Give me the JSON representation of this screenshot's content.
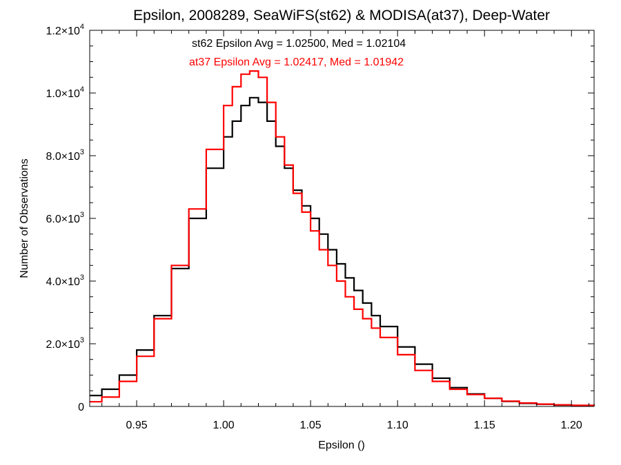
{
  "chart_data": {
    "type": "line",
    "step": true,
    "title": "Epsilon, 2008289, SeaWiFS(st62) & MODISA(at37), Deep-Water",
    "xlabel": "Epsilon ()",
    "ylabel": "Number of Observations",
    "xlim": [
      0.923,
      1.213
    ],
    "ylim": [
      0,
      12000
    ],
    "x_ticks": [
      0.95,
      1.0,
      1.05,
      1.1,
      1.15,
      1.2
    ],
    "x_tick_labels": [
      "0.95",
      "1.00",
      "1.05",
      "1.10",
      "1.15",
      "1.20"
    ],
    "y_ticks": [
      0,
      2000,
      4000,
      6000,
      8000,
      10000,
      12000
    ],
    "y_tick_labels": [
      {
        "mant": "0",
        "exp": ""
      },
      {
        "mant": "2.0×10",
        "exp": "3"
      },
      {
        "mant": "4.0×10",
        "exp": "3"
      },
      {
        "mant": "6.0×10",
        "exp": "3"
      },
      {
        "mant": "8.0×10",
        "exp": "3"
      },
      {
        "mant": "1.0×10",
        "exp": "4"
      },
      {
        "mant": "1.2×10",
        "exp": "4"
      }
    ],
    "grid": false,
    "legend_position": "top-center",
    "series": [
      {
        "name": "st62",
        "color": "#000000",
        "label": "st62 Epsilon Avg = 1.02500, Med = 1.02104",
        "x": [
          0.923,
          0.93,
          0.94,
          0.95,
          0.96,
          0.97,
          0.98,
          0.99,
          1.0,
          1.005,
          1.01,
          1.015,
          1.02,
          1.025,
          1.03,
          1.035,
          1.04,
          1.045,
          1.05,
          1.055,
          1.06,
          1.065,
          1.07,
          1.075,
          1.08,
          1.085,
          1.09,
          1.1,
          1.11,
          1.12,
          1.13,
          1.14,
          1.15,
          1.16,
          1.17,
          1.18,
          1.19,
          1.2,
          1.213
        ],
        "y": [
          350,
          550,
          1000,
          1800,
          2900,
          4400,
          6000,
          7600,
          8600,
          9100,
          9600,
          9850,
          9700,
          9100,
          8300,
          7600,
          6900,
          6400,
          6000,
          5500,
          5000,
          4550,
          4100,
          3700,
          3300,
          2900,
          2550,
          1900,
          1350,
          900,
          600,
          400,
          260,
          160,
          100,
          70,
          45,
          30,
          20
        ]
      },
      {
        "name": "at37",
        "color": "#ff0000",
        "label": "at37 Epsilon Avg = 1.02417, Med = 1.01942",
        "x": [
          0.923,
          0.93,
          0.94,
          0.95,
          0.96,
          0.97,
          0.98,
          0.99,
          1.0,
          1.005,
          1.01,
          1.015,
          1.02,
          1.025,
          1.03,
          1.035,
          1.04,
          1.045,
          1.05,
          1.055,
          1.06,
          1.065,
          1.07,
          1.075,
          1.08,
          1.085,
          1.09,
          1.1,
          1.11,
          1.12,
          1.13,
          1.14,
          1.15,
          1.16,
          1.17,
          1.18,
          1.19,
          1.2,
          1.213
        ],
        "y": [
          150,
          300,
          800,
          1600,
          2800,
          4500,
          6300,
          8200,
          9600,
          10200,
          10600,
          10700,
          10500,
          9700,
          8600,
          7700,
          6800,
          6200,
          5600,
          5000,
          4500,
          4000,
          3500,
          3100,
          2800,
          2500,
          2200,
          1650,
          1150,
          800,
          550,
          380,
          260,
          170,
          110,
          75,
          50,
          35,
          25
        ]
      }
    ]
  }
}
